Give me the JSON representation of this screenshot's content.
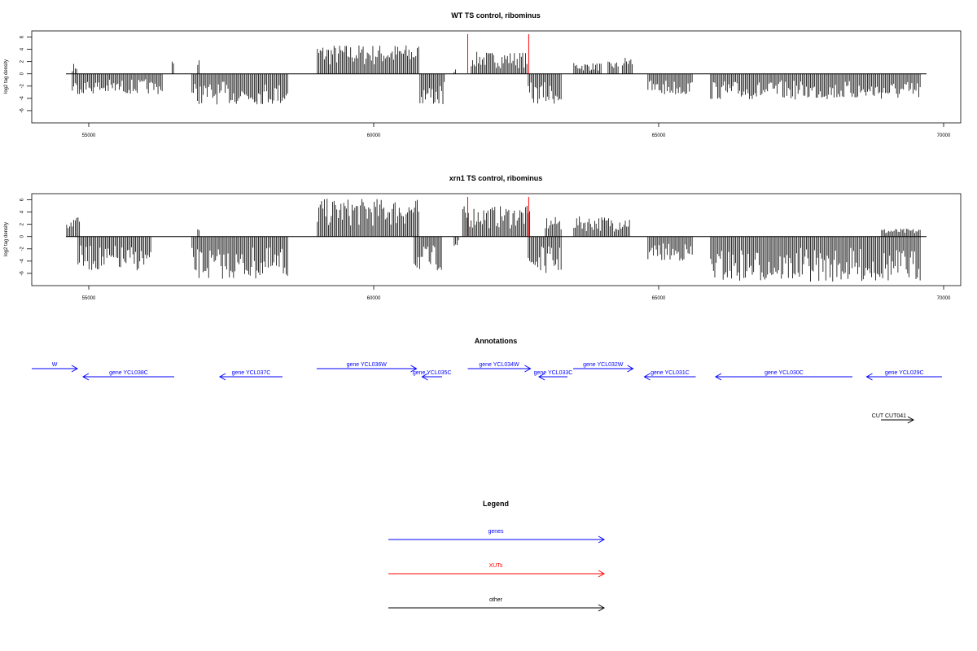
{
  "chart_data": [
    {
      "type": "bar",
      "title": "WT TS control, ribominus",
      "ylabel": "log2 tag density",
      "xlim": [
        54000,
        70300
      ],
      "ylim": [
        -8,
        7
      ],
      "x_ticks": [
        55000,
        60000,
        65000,
        70000
      ],
      "x_tick_labels": [
        "55000",
        "60000",
        "65000",
        "70000"
      ],
      "y_ticks": [
        -6,
        -4,
        -2,
        0,
        2,
        4,
        6
      ],
      "y_tick_labels": [
        "-6",
        "-4",
        "-2",
        "0",
        "2",
        "4",
        "6"
      ],
      "baseline_range": [
        54600,
        69700
      ],
      "marker_color": "#ff0000",
      "markers": [
        61650,
        62720
      ],
      "series": [
        {
          "strand": "plus",
          "segments": [
            {
              "start": 54700,
              "end": 54800,
              "max": 1.7
            },
            {
              "start": 56450,
              "end": 56500,
              "max": 2.4
            },
            {
              "start": 56900,
              "end": 56950,
              "max": 2.6
            },
            {
              "start": 59000,
              "end": 60800,
              "max": 4.8
            },
            {
              "start": 61400,
              "end": 61450,
              "max": 0.8
            },
            {
              "start": 61700,
              "end": 62700,
              "max": 3.6
            },
            {
              "start": 63500,
              "end": 64000,
              "max": 1.8
            },
            {
              "start": 64100,
              "end": 64300,
              "max": 2.0
            },
            {
              "start": 64350,
              "end": 64550,
              "max": 2.8
            }
          ]
        },
        {
          "strand": "minus",
          "segments": [
            {
              "start": 54700,
              "end": 56300,
              "max": 3.3
            },
            {
              "start": 56800,
              "end": 58500,
              "max": 5.0
            },
            {
              "start": 60800,
              "end": 61250,
              "max": 5.2
            },
            {
              "start": 62700,
              "end": 63300,
              "max": 5.0
            },
            {
              "start": 64800,
              "end": 65600,
              "max": 3.5
            },
            {
              "start": 65900,
              "end": 69600,
              "max": 4.2
            }
          ]
        }
      ]
    },
    {
      "type": "bar",
      "title": "xrn1 TS control, ribominus",
      "ylabel": "log2 tag density",
      "xlim": [
        54000,
        70300
      ],
      "ylim": [
        -8,
        7
      ],
      "x_ticks": [
        55000,
        60000,
        65000,
        70000
      ],
      "x_tick_labels": [
        "55000",
        "60000",
        "65000",
        "70000"
      ],
      "y_ticks": [
        -6,
        -4,
        -2,
        0,
        2,
        4,
        6
      ],
      "y_tick_labels": [
        "-6",
        "-4",
        "-2",
        "0",
        "2",
        "4",
        "6"
      ],
      "baseline_range": [
        54600,
        69700
      ],
      "marker_color": "#ff0000",
      "markers": [
        61650,
        62720
      ],
      "series": [
        {
          "strand": "plus",
          "segments": [
            {
              "start": 54600,
              "end": 54850,
              "max": 3.6
            },
            {
              "start": 56900,
              "end": 56950,
              "max": 1.3
            },
            {
              "start": 59000,
              "end": 60800,
              "max": 6.2
            },
            {
              "start": 61550,
              "end": 62750,
              "max": 5.0
            },
            {
              "start": 63000,
              "end": 63300,
              "max": 3.2
            },
            {
              "start": 63500,
              "end": 64500,
              "max": 3.3
            },
            {
              "start": 68900,
              "end": 69600,
              "max": 1.3
            }
          ]
        },
        {
          "strand": "minus",
          "segments": [
            {
              "start": 54800,
              "end": 56100,
              "max": 5.6
            },
            {
              "start": 56800,
              "end": 58500,
              "max": 7.0
            },
            {
              "start": 60700,
              "end": 61200,
              "max": 5.6
            },
            {
              "start": 61400,
              "end": 61500,
              "max": 1.8
            },
            {
              "start": 62700,
              "end": 63300,
              "max": 6.0
            },
            {
              "start": 64800,
              "end": 65600,
              "max": 4.0
            },
            {
              "start": 65900,
              "end": 69600,
              "max": 7.4
            }
          ]
        }
      ]
    }
  ],
  "annotations": {
    "title": "Annotations",
    "gene_color": "#0000ff",
    "other_color": "#000000",
    "genes": [
      {
        "label": "W",
        "start": 54000,
        "end": 54800,
        "strand": "+",
        "row": 0
      },
      {
        "label": "gene YCL038C",
        "start": 54900,
        "end": 56500,
        "strand": "-",
        "row": 1
      },
      {
        "label": "gene YCL037C",
        "start": 57300,
        "end": 58400,
        "strand": "-",
        "row": 1
      },
      {
        "label": "gene YCL036W",
        "start": 59000,
        "end": 60750,
        "strand": "+",
        "row": 0
      },
      {
        "label": "gene YCL035C",
        "start": 60850,
        "end": 61200,
        "strand": "-",
        "row": 1
      },
      {
        "label": "gene YCL034W",
        "start": 61650,
        "end": 62750,
        "strand": "+",
        "row": 0
      },
      {
        "label": "gene YCL033C",
        "start": 62900,
        "end": 63400,
        "strand": "-",
        "row": 1
      },
      {
        "label": "gene YCL032W",
        "start": 63500,
        "end": 64550,
        "strand": "+",
        "row": 0
      },
      {
        "label": "gene YCL031C",
        "start": 64750,
        "end": 65650,
        "strand": "-",
        "row": 1
      },
      {
        "label": "gene YCL030C",
        "start": 66000,
        "end": 68400,
        "strand": "-",
        "row": 1
      },
      {
        "label": "gene YCL029C",
        "start": 68650,
        "end": 69970,
        "strand": "-",
        "row": 1
      }
    ],
    "other": [
      {
        "label": "CUT CUT041",
        "start": 68900,
        "end": 69470,
        "strand": "+"
      }
    ]
  },
  "legend": {
    "title": "Legend",
    "items": [
      {
        "label": "genes",
        "color": "#0000ff"
      },
      {
        "label": "XUTs",
        "color": "#ff0000"
      },
      {
        "label": "other",
        "color": "#000000"
      }
    ]
  }
}
